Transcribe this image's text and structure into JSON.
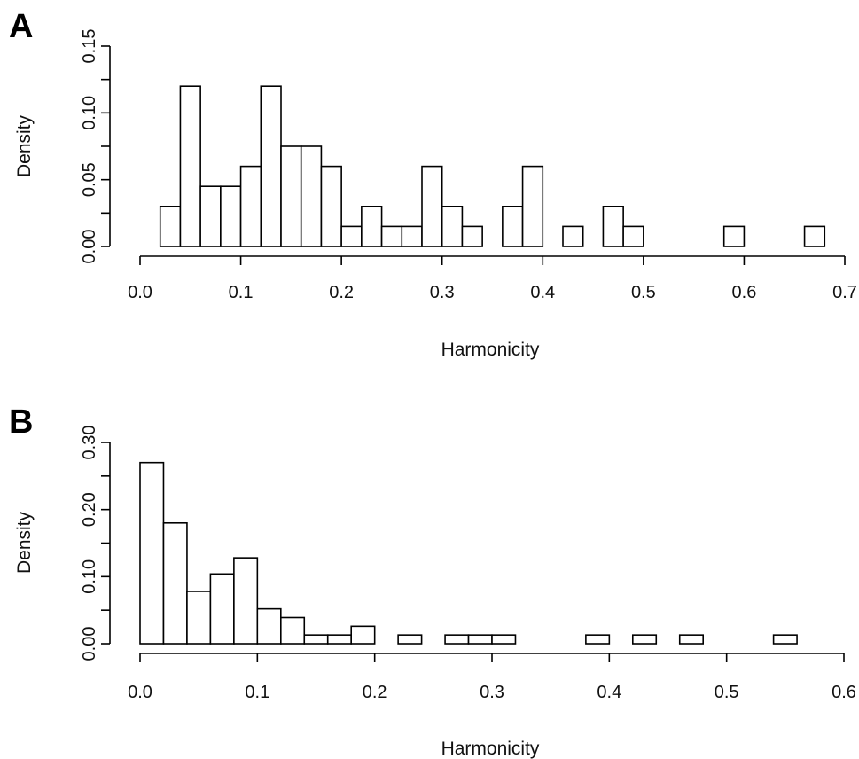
{
  "chart_data": [
    {
      "panel": "A",
      "type": "bar",
      "xlabel": "Harmonicity",
      "ylabel": "Density",
      "xlim": [
        0.0,
        0.7
      ],
      "ylim": [
        0.0,
        0.15
      ],
      "x_ticks": [
        "0.0",
        "0.1",
        "0.2",
        "0.3",
        "0.4",
        "0.5",
        "0.6",
        "0.7"
      ],
      "y_ticks": [
        "0.00",
        "0.05",
        "0.10",
        "0.15"
      ],
      "bin_width": 0.02,
      "bins_start": [
        0.02,
        0.04,
        0.06,
        0.08,
        0.1,
        0.12,
        0.14,
        0.16,
        0.18,
        0.2,
        0.22,
        0.24,
        0.26,
        0.28,
        0.3,
        0.32,
        0.34,
        0.36,
        0.38,
        0.4,
        0.42,
        0.44,
        0.46,
        0.48,
        0.5,
        0.52,
        0.54,
        0.56,
        0.58,
        0.6,
        0.62,
        0.64,
        0.66
      ],
      "values": [
        0.03,
        0.12,
        0.045,
        0.045,
        0.06,
        0.12,
        0.075,
        0.075,
        0.06,
        0.015,
        0.03,
        0.015,
        0.015,
        0.06,
        0.03,
        0.015,
        0.0,
        0.03,
        0.06,
        0.0,
        0.015,
        0.0,
        0.03,
        0.015,
        0.0,
        0.0,
        0.0,
        0.0,
        0.015,
        0.0,
        0.0,
        0.0,
        0.015
      ],
      "grid": false
    },
    {
      "panel": "B",
      "type": "bar",
      "xlabel": "Harmonicity",
      "ylabel": "Density",
      "xlim": [
        0.0,
        0.6
      ],
      "ylim": [
        0.0,
        0.3
      ],
      "x_ticks": [
        "0.0",
        "0.1",
        "0.2",
        "0.3",
        "0.4",
        "0.5",
        "0.6"
      ],
      "y_ticks": [
        "0.00",
        "0.10",
        "0.20",
        "0.30"
      ],
      "bin_width": 0.02,
      "bins_start": [
        0.0,
        0.02,
        0.04,
        0.06,
        0.08,
        0.1,
        0.12,
        0.14,
        0.16,
        0.18,
        0.2,
        0.22,
        0.24,
        0.26,
        0.28,
        0.3,
        0.32,
        0.34,
        0.36,
        0.38,
        0.4,
        0.42,
        0.44,
        0.46,
        0.48,
        0.5,
        0.52,
        0.54
      ],
      "values": [
        0.27,
        0.18,
        0.078,
        0.104,
        0.128,
        0.052,
        0.039,
        0.013,
        0.013,
        0.026,
        0.0,
        0.013,
        0.0,
        0.013,
        0.013,
        0.013,
        0.0,
        0.0,
        0.0,
        0.013,
        0.0,
        0.013,
        0.0,
        0.013,
        0.0,
        0.0,
        0.0,
        0.013
      ],
      "grid": false
    }
  ]
}
